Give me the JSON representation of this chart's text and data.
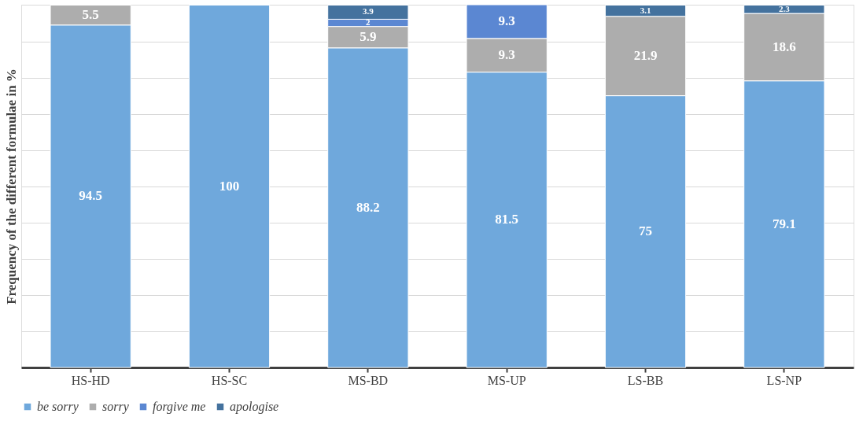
{
  "chart_data": {
    "type": "bar",
    "stacked": true,
    "ylabel": "Frequency of the different formulae in %",
    "categories": [
      "HS-HD",
      "HS-SC",
      "MS-BD",
      "MS-UP",
      "LS-BB",
      "LS-NP"
    ],
    "series": [
      {
        "name": "be sorry",
        "color": "#6fa8dc",
        "values": [
          94.5,
          100,
          88.2,
          81.5,
          75,
          79.1
        ]
      },
      {
        "name": "sorry",
        "color": "#adadad",
        "values": [
          5.5,
          null,
          5.9,
          9.3,
          21.9,
          18.6
        ]
      },
      {
        "name": "forgive me",
        "color": "#5b87d2",
        "values": [
          null,
          null,
          2,
          9.3,
          null,
          null
        ]
      },
      {
        "name": "apologise",
        "color": "#44729e",
        "values": [
          null,
          null,
          3.9,
          null,
          3.1,
          2.3
        ]
      }
    ],
    "ylim": [
      0,
      100.1
    ],
    "yticks": [
      {
        "value": 0,
        "label": null
      },
      {
        "value": 10,
        "label": null
      },
      {
        "value": 20,
        "label": null
      },
      {
        "value": 30,
        "label": null
      },
      {
        "value": 40,
        "label": null
      },
      {
        "value": 50,
        "label": null
      },
      {
        "value": 60,
        "label": null
      },
      {
        "value": 70,
        "label": null
      },
      {
        "value": 80,
        "label": null
      },
      {
        "value": 90,
        "label": null
      },
      {
        "value": 100,
        "label": null
      }
    ],
    "tick_labels": "x",
    "grid": "y",
    "legend": "bottom",
    "data_labels": true
  }
}
